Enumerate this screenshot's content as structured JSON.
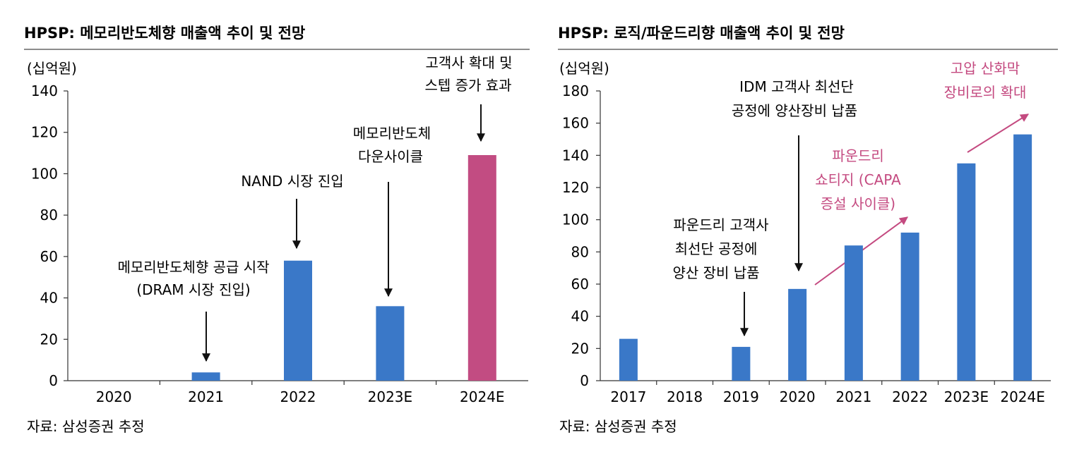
{
  "colors": {
    "bar_blue": "#3a78c8",
    "bar_pink": "#c24c82",
    "annotation_pink": "#c44a80",
    "axis": "#333333",
    "divider": "#666666"
  },
  "chart_data": [
    {
      "type": "bar",
      "title": "HPSP: 메모리반도체향 매출액 추이 및 전망",
      "unit_label": "(십억원)",
      "source": "자료: 삼성증권 추정",
      "categories": [
        "2020",
        "2021",
        "2022",
        "2023E",
        "2024E"
      ],
      "values": [
        0,
        4,
        58,
        36,
        109
      ],
      "highlight": [
        false,
        false,
        false,
        false,
        true
      ],
      "ylim": [
        0,
        140
      ],
      "yticks": [
        "0",
        "20",
        "40",
        "60",
        "80",
        "100",
        "120",
        "140"
      ],
      "annotations": [
        {
          "lines": [
            "메모리반도체향 공급 시작",
            "(DRAM 시장 진입)"
          ],
          "color": "black"
        },
        {
          "lines": [
            "NAND 시장 진입"
          ],
          "color": "black"
        },
        {
          "lines": [
            "메모리반도체",
            "다운사이클"
          ],
          "color": "black"
        },
        {
          "lines": [
            "고객사  확대 및",
            "스텝 증가 효과"
          ],
          "color": "black"
        }
      ]
    },
    {
      "type": "bar",
      "title": "HPSP: 로직/파운드리향 매출액 추이 및 전망",
      "unit_label": "(십억원)",
      "source": "자료: 삼성증권 추정",
      "categories": [
        "2017",
        "2018",
        "2019",
        "2020",
        "2021",
        "2022",
        "2023E",
        "2024E"
      ],
      "values": [
        26,
        0,
        21,
        57,
        84,
        92,
        135,
        153
      ],
      "ylim": [
        0,
        180
      ],
      "yticks": [
        "0",
        "20",
        "40",
        "60",
        "80",
        "100",
        "120",
        "140",
        "160",
        "180"
      ],
      "annotations": [
        {
          "lines": [
            "파운드리 고객사",
            "최선단 공정에",
            "양산 장비 납품"
          ],
          "color": "black"
        },
        {
          "lines": [
            "IDM 고객사 최선단",
            "공정에 양산장비 납품"
          ],
          "color": "black"
        },
        {
          "lines": [
            "파운드리",
            "쇼티지 (CAPA",
            "증설 사이클)"
          ],
          "color": "pink"
        },
        {
          "lines": [
            "고압 산화막",
            "장비로의 확대"
          ],
          "color": "pink"
        }
      ]
    }
  ]
}
